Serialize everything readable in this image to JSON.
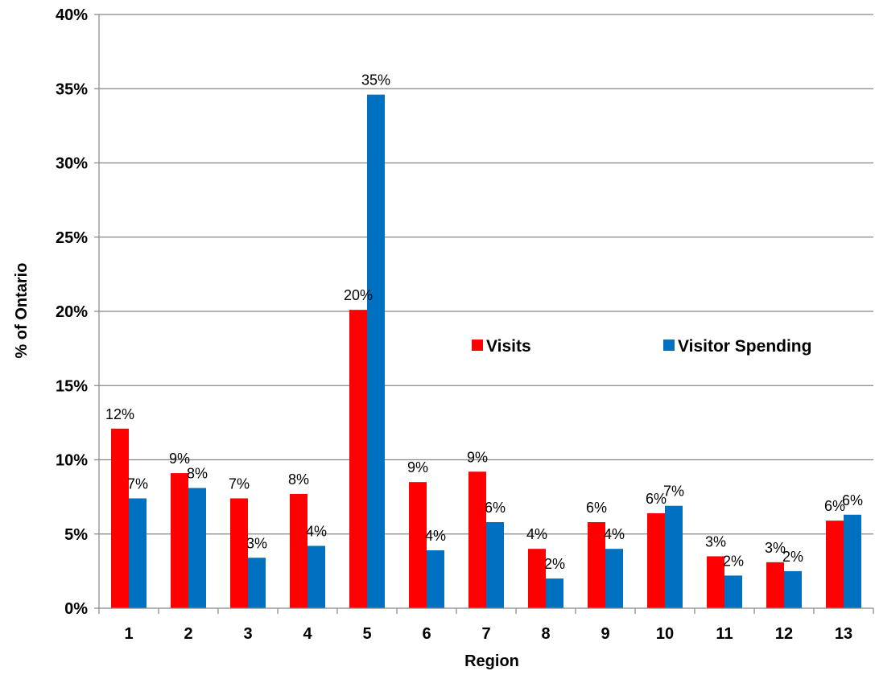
{
  "chart_data": {
    "type": "bar",
    "title": "",
    "xlabel": "Region",
    "ylabel": "% of Ontario",
    "ylim": [
      0,
      40
    ],
    "y_ticks": [
      "0%",
      "5%",
      "10%",
      "15%",
      "20%",
      "25%",
      "30%",
      "35%",
      "40%"
    ],
    "y_tick_values": [
      0,
      5,
      10,
      15,
      20,
      25,
      30,
      35,
      40
    ],
    "grid": true,
    "legend_position": "center-right",
    "categories": [
      "1",
      "2",
      "3",
      "4",
      "5",
      "6",
      "7",
      "8",
      "9",
      "10",
      "11",
      "12",
      "13"
    ],
    "series": [
      {
        "name": "Visits",
        "color": "#ff0000",
        "values": [
          12.1,
          9.1,
          7.4,
          7.7,
          20.1,
          8.5,
          9.2,
          4.0,
          5.8,
          6.4,
          3.5,
          3.1,
          5.9
        ],
        "labels": [
          "12%",
          "9%",
          "7%",
          "8%",
          "20%",
          "9%",
          "9%",
          "4%",
          "6%",
          "6%",
          "3%",
          "3%",
          "6%"
        ]
      },
      {
        "name": "Visitor Spending",
        "color": "#0070c0",
        "values": [
          7.4,
          8.1,
          3.4,
          4.2,
          34.6,
          3.9,
          5.8,
          2.0,
          4.0,
          6.9,
          2.2,
          2.5,
          6.3
        ],
        "labels": [
          "7%",
          "8%",
          "3%",
          "4%",
          "35%",
          "4%",
          "6%",
          "2%",
          "4%",
          "7%",
          "2%",
          "2%",
          "6%"
        ]
      }
    ]
  }
}
